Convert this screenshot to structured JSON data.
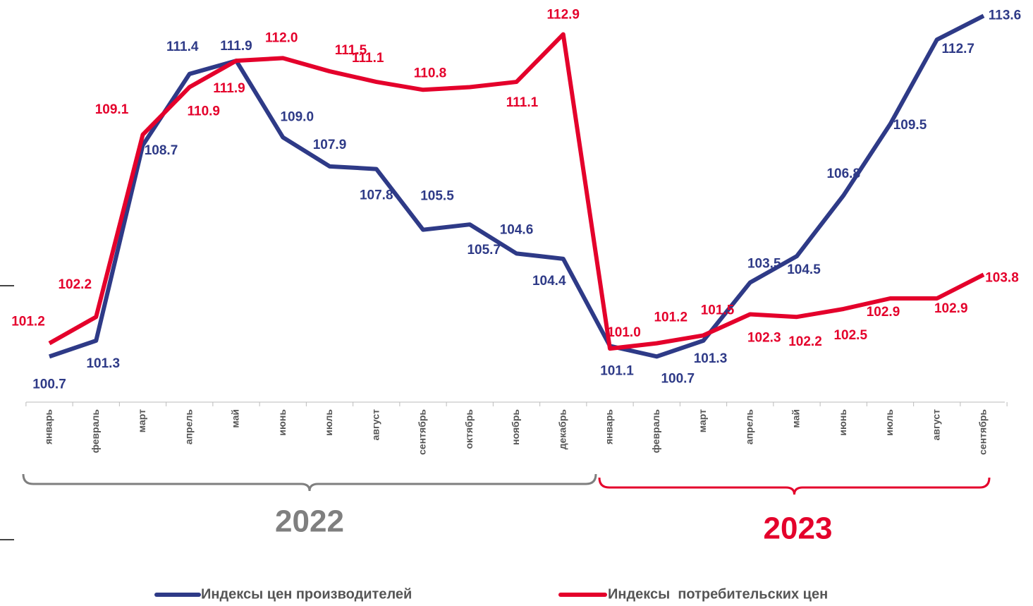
{
  "chart_data": {
    "type": "line",
    "categories": [
      "январь",
      "февраль",
      "март",
      "апрель",
      "май",
      "июнь",
      "июль",
      "август",
      "сентябрь",
      "октябрь",
      "ноябрь",
      "декабрь",
      "январь",
      "февраль",
      "март",
      "апрель",
      "май",
      "июнь",
      "июль",
      "август",
      "сентябрь"
    ],
    "groups": [
      {
        "label": "2022",
        "color": "#7f7f7f"
      },
      {
        "label": "2023",
        "color": "#e4002b"
      }
    ],
    "series": [
      {
        "name": "Индексы цен производителей",
        "color": "#2e3a87",
        "values": [
          100.7,
          101.3,
          108.7,
          111.4,
          111.9,
          109.0,
          107.9,
          107.8,
          105.5,
          105.7,
          104.6,
          104.4,
          101.1,
          100.7,
          101.3,
          103.5,
          104.5,
          106.8,
          109.5,
          112.7,
          113.6
        ],
        "value_labels": [
          "100.7",
          "101.3",
          "108.7",
          "111.4",
          "111.9",
          "109.0",
          "107.9",
          "107.8",
          "105.5",
          "105.7",
          "104.6",
          "104.4",
          "101.1",
          "100.7",
          "101.3",
          "103.5",
          "104.5",
          "106.8",
          "109.5",
          "112.7",
          "113.6"
        ]
      },
      {
        "name": "Индексы  потребительских цен",
        "color": "#e4002b",
        "values": [
          101.2,
          102.2,
          109.1,
          110.9,
          111.9,
          112.0,
          111.5,
          111.1,
          110.8,
          110.9,
          111.1,
          112.9,
          101.0,
          101.2,
          101.5,
          102.3,
          102.2,
          102.5,
          102.9,
          102.9,
          103.8
        ],
        "value_labels": [
          "101.2",
          "102.2",
          "109.1",
          "110.9",
          "111.9",
          "112.0",
          "111.5",
          "111.1",
          "110.8",
          null,
          "111.1",
          "112.9",
          "101.0",
          "101.2",
          "101.5",
          "102.3",
          "102.2",
          "102.5",
          "102.9",
          "102.9",
          "103.8"
        ]
      }
    ],
    "ylim": [
      99,
      114.2
    ],
    "legend": "bottom"
  }
}
